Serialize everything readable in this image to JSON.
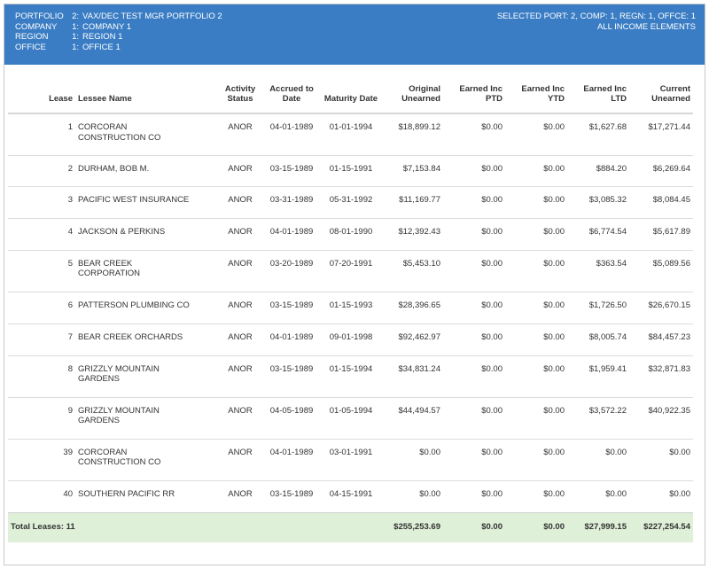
{
  "header": {
    "portfolio_label": "PORTFOLIO",
    "portfolio_num": "2:",
    "portfolio_name": "VAX/DEC TEST MGR PORTFOLIO 2",
    "company_label": "COMPANY",
    "company_num": "1:",
    "company_name": "COMPANY 1",
    "region_label": "REGION",
    "region_num": "1:",
    "region_name": "REGION 1",
    "office_label": "OFFICE",
    "office_num": "1:",
    "office_name": "OFFICE 1",
    "selected": "SELECTED PORT: 2, COMP: 1, REGN: 1, OFFCE: 1",
    "scope": "ALL INCOME ELEMENTS"
  },
  "columns": {
    "lease": "Lease",
    "lessee": "Lessee Name",
    "status_1": "Activity",
    "status_2": "Status",
    "accrued_1": "Accrued to",
    "accrued_2": "Date",
    "maturity": "Maturity Date",
    "orig_1": "Original",
    "orig_2": "Unearned",
    "ptd_1": "Earned Inc",
    "ptd_2": "PTD",
    "ytd_1": "Earned Inc",
    "ytd_2": "YTD",
    "ltd_1": "Earned Inc",
    "ltd_2": "LTD",
    "cur_1": "Current",
    "cur_2": "Unearned"
  },
  "rows": [
    {
      "lease": "1",
      "name1": "CORCORAN",
      "name2": "CONSTRUCTION CO",
      "status": "ANOR",
      "accrued": "04-01-1989",
      "maturity": "01-01-1994",
      "orig": "$18,899.12",
      "ptd": "$0.00",
      "ytd": "$0.00",
      "ltd": "$1,627.68",
      "cur": "$17,271.44"
    },
    {
      "lease": "2",
      "name1": "DURHAM, BOB M.",
      "name2": "",
      "status": "ANOR",
      "accrued": "03-15-1989",
      "maturity": "01-15-1991",
      "orig": "$7,153.84",
      "ptd": "$0.00",
      "ytd": "$0.00",
      "ltd": "$884.20",
      "cur": "$6,269.64"
    },
    {
      "lease": "3",
      "name1": "PACIFIC WEST INSURANCE",
      "name2": "",
      "status": "ANOR",
      "accrued": "03-31-1989",
      "maturity": "05-31-1992",
      "orig": "$11,169.77",
      "ptd": "$0.00",
      "ytd": "$0.00",
      "ltd": "$3,085.32",
      "cur": "$8,084.45"
    },
    {
      "lease": "4",
      "name1": "JACKSON & PERKINS",
      "name2": "",
      "status": "ANOR",
      "accrued": "04-01-1989",
      "maturity": "08-01-1990",
      "orig": "$12,392.43",
      "ptd": "$0.00",
      "ytd": "$0.00",
      "ltd": "$6,774.54",
      "cur": "$5,617.89"
    },
    {
      "lease": "5",
      "name1": "BEAR CREEK",
      "name2": "CORPORATION",
      "status": "ANOR",
      "accrued": "03-20-1989",
      "maturity": "07-20-1991",
      "orig": "$5,453.10",
      "ptd": "$0.00",
      "ytd": "$0.00",
      "ltd": "$363.54",
      "cur": "$5,089.56"
    },
    {
      "lease": "6",
      "name1": "PATTERSON PLUMBING CO",
      "name2": "",
      "status": "ANOR",
      "accrued": "03-15-1989",
      "maturity": "01-15-1993",
      "orig": "$28,396.65",
      "ptd": "$0.00",
      "ytd": "$0.00",
      "ltd": "$1,726.50",
      "cur": "$26,670.15"
    },
    {
      "lease": "7",
      "name1": "BEAR CREEK ORCHARDS",
      "name2": "",
      "status": "ANOR",
      "accrued": "04-01-1989",
      "maturity": "09-01-1998",
      "orig": "$92,462.97",
      "ptd": "$0.00",
      "ytd": "$0.00",
      "ltd": "$8,005.74",
      "cur": "$84,457.23"
    },
    {
      "lease": "8",
      "name1": "GRIZZLY MOUNTAIN",
      "name2": "GARDENS",
      "status": "ANOR",
      "accrued": "03-15-1989",
      "maturity": "01-15-1994",
      "orig": "$34,831.24",
      "ptd": "$0.00",
      "ytd": "$0.00",
      "ltd": "$1,959.41",
      "cur": "$32,871.83"
    },
    {
      "lease": "9",
      "name1": "GRIZZLY MOUNTAIN",
      "name2": "GARDENS",
      "status": "ANOR",
      "accrued": "04-05-1989",
      "maturity": "01-05-1994",
      "orig": "$44,494.57",
      "ptd": "$0.00",
      "ytd": "$0.00",
      "ltd": "$3,572.22",
      "cur": "$40,922.35"
    },
    {
      "lease": "39",
      "name1": "CORCORAN",
      "name2": "CONSTRUCTION CO",
      "status": "ANOR",
      "accrued": "04-01-1989",
      "maturity": "03-01-1991",
      "orig": "$0.00",
      "ptd": "$0.00",
      "ytd": "$0.00",
      "ltd": "$0.00",
      "cur": "$0.00"
    },
    {
      "lease": "40",
      "name1": "SOUTHERN PACIFIC RR",
      "name2": "",
      "status": "ANOR",
      "accrued": "03-15-1989",
      "maturity": "04-15-1991",
      "orig": "$0.00",
      "ptd": "$0.00",
      "ytd": "$0.00",
      "ltd": "$0.00",
      "cur": "$0.00"
    }
  ],
  "totals": {
    "label": "Total Leases: 11",
    "orig": "$255,253.69",
    "ptd": "$0.00",
    "ytd": "$0.00",
    "ltd": "$27,999.15",
    "cur": "$227,254.54"
  },
  "colors": {
    "header_bg": "#3a7dc4",
    "total_bg": "#dff0d8"
  }
}
